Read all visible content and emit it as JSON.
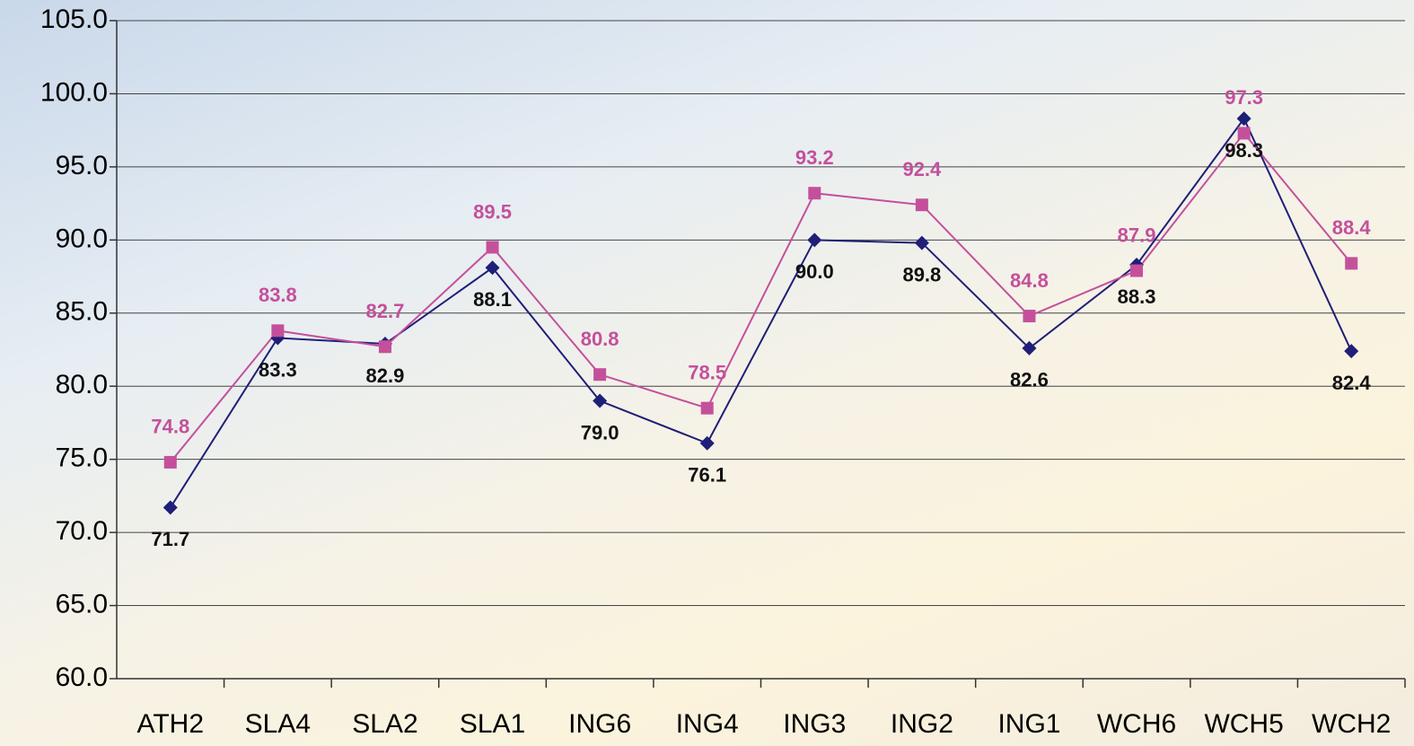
{
  "chart_data": {
    "type": "line",
    "categories": [
      "ATH2",
      "SLA4",
      "SLA2",
      "SLA1",
      "ING6",
      "ING4",
      "ING3",
      "ING2",
      "ING1",
      "WCH6",
      "WCH5",
      "WCH2"
    ],
    "series": [
      {
        "color": "#1f1f78",
        "marker": "diamond",
        "values": [
          71.7,
          83.3,
          82.9,
          88.1,
          79.0,
          76.1,
          90.0,
          89.8,
          82.6,
          88.3,
          98.3,
          82.4
        ],
        "value_labels": [
          "71.7",
          "83.3",
          "82.9",
          "88.1",
          "79.0",
          "76.1",
          "90.0",
          "89.8",
          "82.6",
          "88.3",
          "98.3",
          "82.4"
        ]
      },
      {
        "color": "#c4509c",
        "marker": "square",
        "values": [
          74.8,
          83.8,
          82.7,
          89.5,
          80.8,
          78.5,
          93.2,
          92.4,
          84.8,
          87.9,
          97.3,
          88.4
        ],
        "value_labels": [
          "74.8",
          "83.8",
          "82.7",
          "89.5",
          "80.8",
          "78.5",
          "93.2",
          "92.4",
          "84.8",
          "87.9",
          "97.3",
          "88.4"
        ]
      }
    ],
    "ylim": [
      60,
      105
    ],
    "yticks": [
      {
        "value": 60,
        "label": "60.0"
      },
      {
        "value": 65,
        "label": "65.0"
      },
      {
        "value": 70,
        "label": "70.0"
      },
      {
        "value": 75,
        "label": "75.0"
      },
      {
        "value": 80,
        "label": "80.0"
      },
      {
        "value": 85,
        "label": "85.0"
      },
      {
        "value": 90,
        "label": "90.0"
      },
      {
        "value": 95,
        "label": "95.0"
      },
      {
        "value": 100,
        "label": "100.0"
      },
      {
        "value": 105,
        "label": "105.0"
      }
    ],
    "grid": true
  }
}
